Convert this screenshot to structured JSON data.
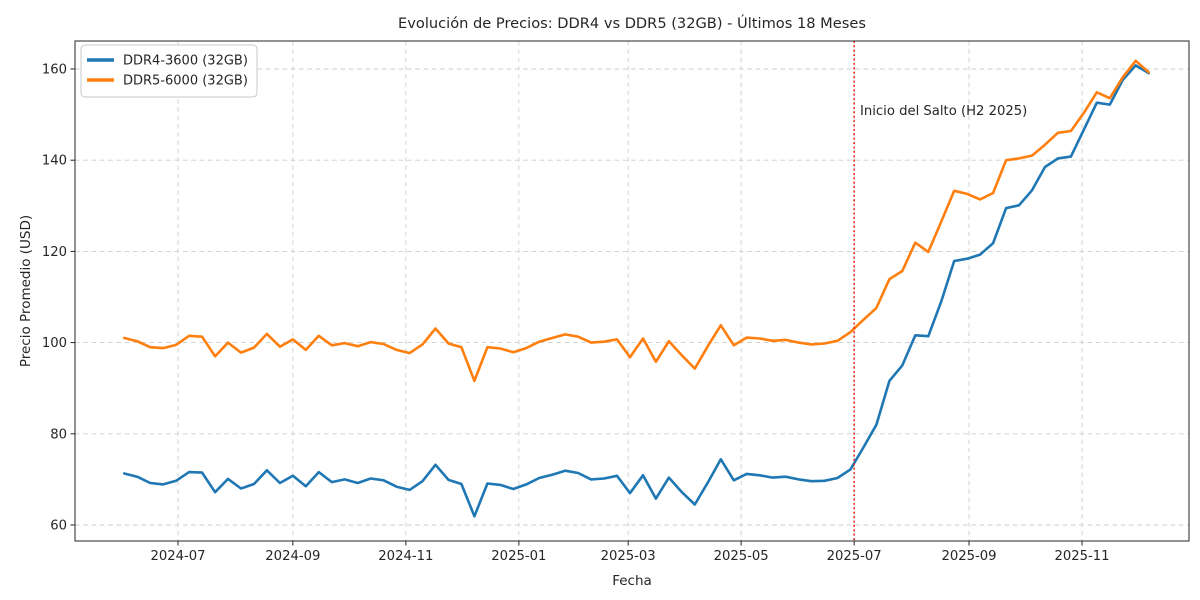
{
  "chart_data": {
    "type": "line",
    "title": "Evolución de Precios: DDR4 vs DDR5 (32GB) - Últimos 18 Meses",
    "xlabel": "Fecha",
    "ylabel": "Precio Promedio (USD)",
    "grid": true,
    "legend_position": "upper left",
    "ylim": [
      56.5,
      166.1
    ],
    "yticks": [
      60,
      80,
      100,
      120,
      140,
      160
    ],
    "xticks": [
      "2024-07",
      "2024-09",
      "2024-11",
      "2025-01",
      "2025-03",
      "2025-05",
      "2025-07",
      "2025-09",
      "2025-11"
    ],
    "annotation": {
      "label": "Inicio del Salto (H2 2025)",
      "date": "2025-07-01",
      "color": "#ee2211",
      "line_style": "dotted"
    },
    "x": [
      "2024-06-02",
      "2024-06-09",
      "2024-06-16",
      "2024-06-23",
      "2024-06-30",
      "2024-07-07",
      "2024-07-14",
      "2024-07-21",
      "2024-07-28",
      "2024-08-04",
      "2024-08-11",
      "2024-08-18",
      "2024-08-25",
      "2024-09-01",
      "2024-09-08",
      "2024-09-15",
      "2024-09-22",
      "2024-09-29",
      "2024-10-06",
      "2024-10-13",
      "2024-10-20",
      "2024-10-27",
      "2024-11-03",
      "2024-11-10",
      "2024-11-17",
      "2024-11-24",
      "2024-12-01",
      "2024-12-08",
      "2024-12-15",
      "2024-12-22",
      "2024-12-29",
      "2025-01-05",
      "2025-01-12",
      "2025-01-19",
      "2025-01-26",
      "2025-02-02",
      "2025-02-09",
      "2025-02-16",
      "2025-02-23",
      "2025-03-02",
      "2025-03-09",
      "2025-03-16",
      "2025-03-23",
      "2025-03-30",
      "2025-04-06",
      "2025-04-13",
      "2025-04-20",
      "2025-04-27",
      "2025-05-04",
      "2025-05-11",
      "2025-05-18",
      "2025-05-25",
      "2025-06-01",
      "2025-06-08",
      "2025-06-15",
      "2025-06-22",
      "2025-06-29",
      "2025-07-06",
      "2025-07-13",
      "2025-07-20",
      "2025-07-27",
      "2025-08-03",
      "2025-08-10",
      "2025-08-17",
      "2025-08-24",
      "2025-08-31",
      "2025-09-07",
      "2025-09-14",
      "2025-09-21",
      "2025-09-28",
      "2025-10-05",
      "2025-10-12",
      "2025-10-19",
      "2025-10-26",
      "2025-11-02",
      "2025-11-09",
      "2025-11-16",
      "2025-11-23",
      "2025-11-30",
      "2025-12-07"
    ],
    "series": [
      {
        "name": "DDR4-3600 (32GB)",
        "color": "#1f77b4",
        "values": [
          71.3,
          70.6,
          69.2,
          68.9,
          69.7,
          71.6,
          71.5,
          67.2,
          70.1,
          68.0,
          69.0,
          72.0,
          69.2,
          70.8,
          68.5,
          71.6,
          69.4,
          70.0,
          69.2,
          70.2,
          69.8,
          68.4,
          67.7,
          69.6,
          73.2,
          69.9,
          69.0,
          61.9,
          69.1,
          68.8,
          67.9,
          68.9,
          70.3,
          71.0,
          71.9,
          71.4,
          70.0,
          70.2,
          70.8,
          67.0,
          70.9,
          65.8,
          70.4,
          67.2,
          64.5,
          69.3,
          74.4,
          69.8,
          71.2,
          70.9,
          70.4,
          70.6,
          70.0,
          69.6,
          69.7,
          70.3,
          72.2,
          77.0,
          82.0,
          91.6,
          95.0,
          101.6,
          101.4,
          109.0,
          117.9,
          118.4,
          119.3,
          121.8,
          129.5,
          130.1,
          133.4,
          138.5,
          140.4,
          140.8,
          146.7,
          152.6,
          152.2,
          157.6,
          160.8,
          159.1
        ]
      },
      {
        "name": "DDR5-6000 (32GB)",
        "color": "#ff7f0e",
        "values": [
          101.0,
          100.3,
          99.0,
          98.8,
          99.5,
          101.5,
          101.3,
          97.0,
          100.0,
          97.8,
          98.9,
          101.9,
          99.1,
          100.7,
          98.4,
          101.5,
          99.4,
          99.9,
          99.2,
          100.1,
          99.7,
          98.4,
          97.7,
          99.6,
          103.1,
          99.8,
          99.0,
          91.6,
          99.0,
          98.7,
          97.9,
          98.8,
          100.2,
          101.0,
          101.8,
          101.3,
          100.0,
          100.2,
          100.7,
          96.8,
          100.9,
          95.8,
          100.3,
          97.2,
          94.3,
          99.2,
          103.8,
          99.4,
          101.1,
          100.9,
          100.4,
          100.6,
          100.0,
          99.6,
          99.8,
          100.4,
          102.3,
          105.0,
          107.6,
          113.9,
          115.7,
          121.9,
          119.9,
          126.5,
          133.3,
          132.6,
          131.4,
          132.8,
          140.0,
          140.4,
          141.0,
          143.4,
          146.0,
          146.4,
          150.4,
          154.9,
          153.6,
          158.2,
          161.8,
          159.3
        ]
      }
    ]
  }
}
